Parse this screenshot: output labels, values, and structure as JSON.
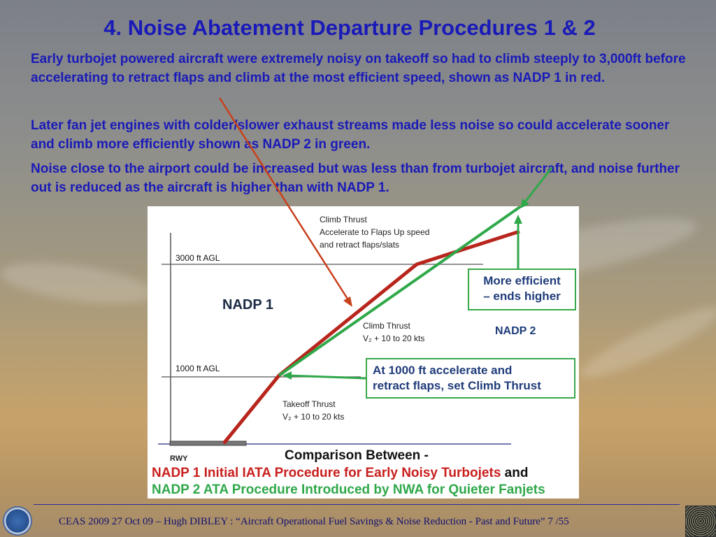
{
  "slide": {
    "title": "4. Noise Abatement Departure Procedures 1 & 2",
    "paragraphs": [
      "Early turbojet powered aircraft were extremely noisy on takeoff so had to climb steeply to 3,000ft  before accelerating to retract flaps and climb at the most efficient speed, shown as NADP 1 in red.",
      "Later fan jet engines with colder/slower exhaust streams made less noise so could accelerate sooner and climb more efficiently shown as NADP 2 in green.",
      "Noise close to the airport could be increased but was less than from turbojet aircraft, and noise further out is reduced as the aircraft is higher than with NADP 1."
    ],
    "footer": "CEAS 2009 27 Oct 09   –  Hugh DIBLEY :  “Aircraft Operational Fuel Savings & Noise Reduction - Past and Future”  7 /55"
  },
  "diagram": {
    "agl_3000": "3000 ft AGL",
    "agl_1000": "1000 ft AGL",
    "nadp1": "NADP 1",
    "nadp2": "NADP 2",
    "climb_thrust_top": [
      "Climb Thrust",
      "Accelerate to Flaps Up speed",
      "and retract flaps/slats"
    ],
    "climb_thrust_mid": [
      "Climb Thrust",
      "V₂  +  10 to 20 kts"
    ],
    "takeoff_thrust": [
      "Takeoff Thrust",
      "V₂  +  10 to 20 kts"
    ],
    "efficient_box": [
      "More efficient",
      "– ends higher"
    ],
    "accelerate_box": [
      "At 1000 ft accelerate and",
      "retract flaps, set Climb Thrust"
    ],
    "rwy": "RWY",
    "comparison_heading": "Comparison Between -",
    "comparison_nadp1": "NADP 1 Initial IATA Procedure for Early Noisy Turbojets",
    "comparison_and": " and",
    "comparison_nadp2": "NADP 2 ATA Procedure Introduced by NWA for Quieter Fanjets"
  },
  "colors": {
    "title_blue": "#1a1ab8",
    "nadp1_red": "#c8201e",
    "nadp2_green": "#2fa84a",
    "box_text_blue": "#1f3c7a"
  }
}
